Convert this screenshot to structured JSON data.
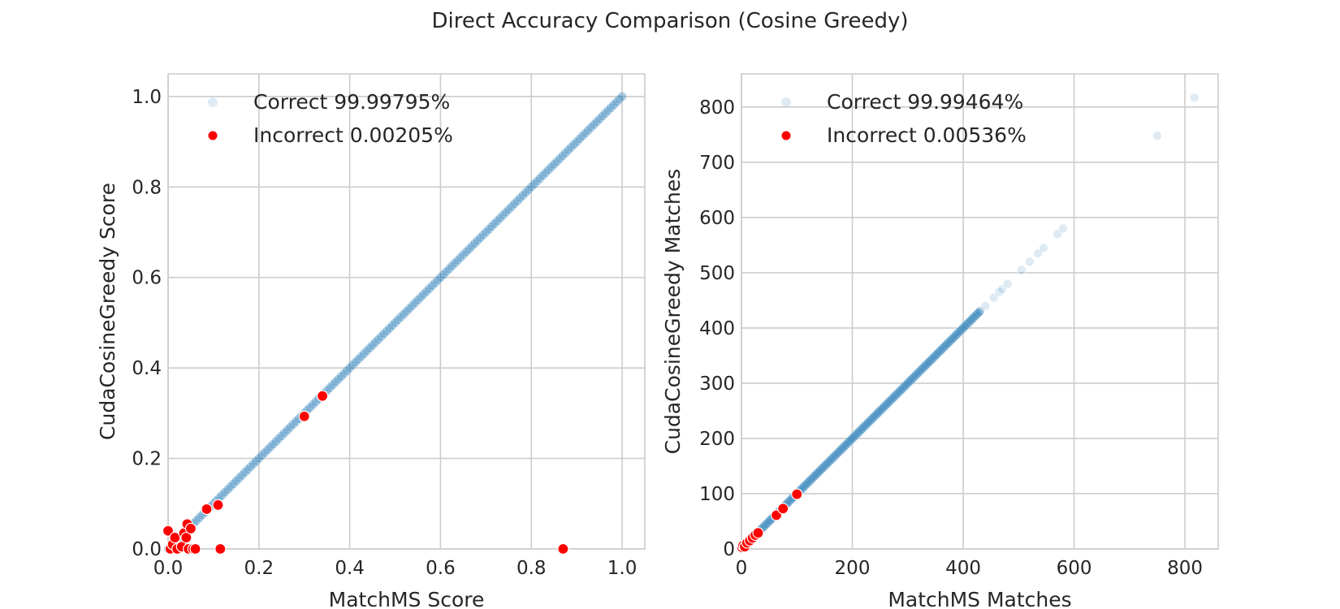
{
  "figure": {
    "title": "Direct Accuracy Comparison (Cosine Greedy)"
  },
  "colors": {
    "correct": "#1f77b4",
    "incorrect": "#ff0000",
    "grid": "#cccccc",
    "frame": "#cccccc",
    "text": "#262626"
  },
  "chart_data": [
    {
      "type": "scatter",
      "xlabel": "MatchMS Score",
      "ylabel": "CudaCosineGreedy Score",
      "xlim": [
        0.0,
        1.05
      ],
      "ylim": [
        0.0,
        1.05
      ],
      "xticks": [
        "0.0",
        "0.2",
        "0.4",
        "0.6",
        "0.8",
        "1.0"
      ],
      "yticks": [
        "0.0",
        "0.2",
        "0.4",
        "0.6",
        "0.8",
        "1.0"
      ],
      "grid": true,
      "legend_position": "top-left",
      "series": [
        {
          "name": "Correct 99.99795%",
          "style": "correct",
          "diagonal_range": [
            0.0,
            1.0
          ]
        },
        {
          "name": "Incorrect 0.00205%",
          "style": "incorrect",
          "points": [
            [
              0.0,
              0.04
            ],
            [
              0.005,
              0.0
            ],
            [
              0.01,
              0.01
            ],
            [
              0.015,
              0.025
            ],
            [
              0.02,
              0.0
            ],
            [
              0.03,
              0.005
            ],
            [
              0.035,
              0.035
            ],
            [
              0.04,
              0.025
            ],
            [
              0.042,
              0.055
            ],
            [
              0.045,
              0.0
            ],
            [
              0.05,
              0.045
            ],
            [
              0.055,
              0.0
            ],
            [
              0.06,
              0.0
            ],
            [
              0.085,
              0.088
            ],
            [
              0.11,
              0.097
            ],
            [
              0.115,
              0.0
            ],
            [
              0.3,
              0.293
            ],
            [
              0.34,
              0.338
            ],
            [
              0.87,
              0.0
            ]
          ]
        }
      ]
    },
    {
      "type": "scatter",
      "xlabel": "MatchMS Matches",
      "ylabel": "CudaCosineGreedy Matches",
      "xlim": [
        0,
        860
      ],
      "ylim": [
        0,
        860
      ],
      "xticks": [
        "0",
        "200",
        "400",
        "600",
        "800"
      ],
      "yticks": [
        "0",
        "100",
        "200",
        "300",
        "400",
        "500",
        "600",
        "700",
        "800"
      ],
      "grid": true,
      "legend_position": "top-left",
      "series": [
        {
          "name": "Correct 99.99464%",
          "style": "correct",
          "diagonal_range": [
            0,
            430
          ],
          "extra_points": [
            [
              440,
              440
            ],
            [
              455,
              455
            ],
            [
              465,
              465
            ],
            [
              470,
              470
            ],
            [
              480,
              480
            ],
            [
              505,
              505
            ],
            [
              520,
              520
            ],
            [
              535,
              535
            ],
            [
              545,
              545
            ],
            [
              570,
              570
            ],
            [
              580,
              580
            ],
            [
              750,
              748
            ],
            [
              817,
              817
            ]
          ]
        },
        {
          "name": "Incorrect 0.00536%",
          "style": "incorrect",
          "points": [
            [
              1,
              3
            ],
            [
              3,
              6
            ],
            [
              6,
              4
            ],
            [
              10,
              11
            ],
            [
              15,
              15
            ],
            [
              20,
              20
            ],
            [
              25,
              25
            ],
            [
              30,
              29
            ],
            [
              63,
              61
            ],
            [
              75,
              73
            ],
            [
              100,
              99
            ]
          ]
        }
      ]
    }
  ]
}
